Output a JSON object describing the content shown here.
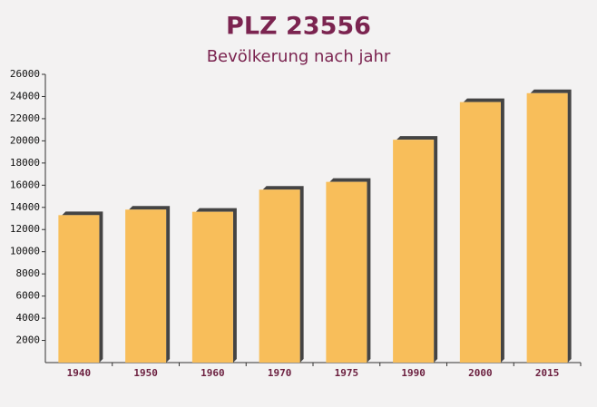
{
  "chart_data": {
    "type": "bar",
    "title": "PLZ 23556",
    "subtitle": "Bevölkerung nach jahr",
    "categories": [
      "1940",
      "1950",
      "1960",
      "1970",
      "1975",
      "1990",
      "2000",
      "2015"
    ],
    "values": [
      13300,
      13800,
      13600,
      15600,
      16300,
      20100,
      23500,
      24300
    ],
    "color": "#f8be5a",
    "ylim": [
      0,
      26000
    ],
    "yticks": [
      2000,
      4000,
      6000,
      8000,
      10000,
      12000,
      14000,
      16000,
      18000,
      20000,
      22000,
      24000,
      26000
    ],
    "grid": false
  }
}
